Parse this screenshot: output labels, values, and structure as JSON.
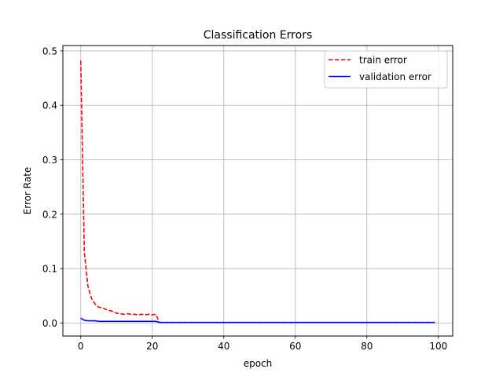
{
  "chart_data": {
    "type": "line",
    "title": "Classification Errors",
    "xlabel": "epoch",
    "ylabel": "Error Rate",
    "xlim": [
      -5,
      104
    ],
    "ylim": [
      -0.024,
      0.51
    ],
    "xticks": [
      0,
      20,
      40,
      60,
      80,
      100
    ],
    "xtick_labels": [
      "0",
      "20",
      "40",
      "60",
      "80",
      "100"
    ],
    "yticks": [
      0.0,
      0.1,
      0.2,
      0.3,
      0.4,
      0.5
    ],
    "ytick_labels": [
      "0.0",
      "0.1",
      "0.2",
      "0.3",
      "0.4",
      "0.5"
    ],
    "grid": true,
    "legend_position": "top-right",
    "x": [
      0,
      1,
      2,
      3,
      4,
      5,
      6,
      7,
      8,
      9,
      10,
      11,
      12,
      13,
      14,
      15,
      16,
      17,
      18,
      19,
      20,
      21,
      22,
      23,
      24,
      25,
      26,
      27,
      28,
      29,
      30,
      31,
      32,
      33,
      34,
      35,
      36,
      37,
      38,
      39,
      40,
      41,
      42,
      43,
      44,
      45,
      46,
      47,
      48,
      49,
      50,
      51,
      52,
      53,
      54,
      55,
      56,
      57,
      58,
      59,
      60,
      61,
      62,
      63,
      64,
      65,
      66,
      67,
      68,
      69,
      70,
      71,
      72,
      73,
      74,
      75,
      76,
      77,
      78,
      79,
      80,
      81,
      82,
      83,
      84,
      85,
      86,
      87,
      88,
      89,
      90,
      91,
      92,
      93,
      94,
      95,
      96,
      97,
      98,
      99
    ],
    "series": [
      {
        "name": "train error",
        "color": "#ff0000",
        "linestyle": "dashed",
        "values": [
          0.482,
          0.13,
          0.068,
          0.045,
          0.035,
          0.029,
          0.028,
          0.025,
          0.023,
          0.021,
          0.018,
          0.017,
          0.016,
          0.017,
          0.016,
          0.016,
          0.015,
          0.016,
          0.015,
          0.016,
          0.015,
          0.016,
          0.001,
          0.001,
          0.001,
          0.001,
          0.001,
          0.001,
          0.001,
          0.001,
          0.001,
          0.001,
          0.001,
          0.001,
          0.001,
          0.001,
          0.001,
          0.001,
          0.001,
          0.001,
          0.001,
          0.001,
          0.001,
          0.001,
          0.001,
          0.001,
          0.001,
          0.001,
          0.001,
          0.001,
          0.001,
          0.001,
          0.001,
          0.001,
          0.001,
          0.001,
          0.001,
          0.001,
          0.001,
          0.001,
          0.001,
          0.001,
          0.001,
          0.001,
          0.001,
          0.001,
          0.001,
          0.001,
          0.001,
          0.001,
          0.001,
          0.001,
          0.001,
          0.001,
          0.001,
          0.001,
          0.001,
          0.001,
          0.001,
          0.001,
          0.001,
          0.001,
          0.001,
          0.001,
          0.001,
          0.001,
          0.001,
          0.001,
          0.001,
          0.001,
          0.001,
          0.001,
          0.001,
          0.001,
          0.001,
          0.001,
          0.001,
          0.001,
          0.001,
          0.001
        ]
      },
      {
        "name": "validation error",
        "color": "#0000ff",
        "linestyle": "solid",
        "values": [
          0.009,
          0.005,
          0.004,
          0.004,
          0.004,
          0.003,
          0.003,
          0.003,
          0.003,
          0.003,
          0.003,
          0.003,
          0.003,
          0.003,
          0.003,
          0.003,
          0.003,
          0.003,
          0.003,
          0.003,
          0.003,
          0.003,
          0.001,
          0.001,
          0.001,
          0.001,
          0.001,
          0.001,
          0.001,
          0.001,
          0.001,
          0.001,
          0.001,
          0.001,
          0.001,
          0.001,
          0.001,
          0.001,
          0.001,
          0.001,
          0.001,
          0.001,
          0.001,
          0.001,
          0.001,
          0.001,
          0.001,
          0.001,
          0.001,
          0.001,
          0.001,
          0.001,
          0.001,
          0.001,
          0.001,
          0.001,
          0.001,
          0.001,
          0.001,
          0.001,
          0.001,
          0.001,
          0.001,
          0.001,
          0.001,
          0.001,
          0.001,
          0.001,
          0.001,
          0.001,
          0.001,
          0.001,
          0.001,
          0.001,
          0.001,
          0.001,
          0.001,
          0.001,
          0.001,
          0.001,
          0.001,
          0.001,
          0.001,
          0.001,
          0.001,
          0.001,
          0.001,
          0.001,
          0.001,
          0.001,
          0.001,
          0.001,
          0.001,
          0.001,
          0.001,
          0.001,
          0.001,
          0.001,
          0.001,
          0.001
        ]
      }
    ]
  }
}
